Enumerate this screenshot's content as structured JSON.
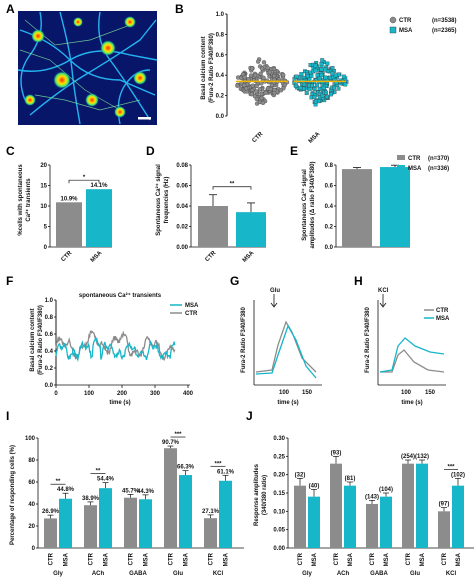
{
  "panels": {
    "A": {
      "letter": "A"
    },
    "B": {
      "letter": "B",
      "ylabel1": "Basal calcium content",
      "ylabel2": "(Fura-2 Ratio F340/F380)",
      "yticks": [
        "0.0",
        "0.2",
        "0.4",
        "0.6",
        "0.8",
        "1.0"
      ],
      "categories": [
        "CTR",
        "MSA"
      ],
      "legend": [
        {
          "name": "CTR",
          "n": "(n=3538)"
        },
        {
          "name": "MSA",
          "n": "(n=2365)"
        }
      ]
    },
    "C": {
      "letter": "C",
      "ylabel1": "%cells with spontaneous",
      "ylabel2": "Ca²⁺ transients",
      "yticks": [
        "0",
        "5",
        "10",
        "15",
        "20"
      ],
      "categories": [
        "CTR",
        "MSA"
      ],
      "bar_labels": [
        "10.9%",
        "14.1%"
      ],
      "sig": "*"
    },
    "D": {
      "letter": "D",
      "ylabel1": "Spontaneous Ca²⁺ signal",
      "ylabel2": "frequencies (Hz)",
      "yticks": [
        "0.00",
        "0.02",
        "0.04",
        "0.06",
        "0.08"
      ],
      "categories": [
        "CTR",
        "MSA"
      ],
      "sig": "**"
    },
    "E": {
      "letter": "E",
      "ylabel1": "Spontaneous Ca²⁺ signal",
      "ylabel2": "amplitudes (Δ ratio F340/F380)",
      "yticks": [
        "0.0",
        "0.2",
        "0.4",
        "0.6",
        "0.8"
      ],
      "legend": [
        {
          "name": "CTR",
          "n": "(n=370)"
        },
        {
          "name": "MSA",
          "n": "(n=336)"
        }
      ]
    },
    "F": {
      "letter": "F",
      "title": "spontaneous Ca²⁺ transients",
      "ylabel1": "Basal calcium content",
      "ylabel2": "(Fura-2 Ratio F340/F380)",
      "xlabel": "time (s)",
      "yticks": [
        "0.0",
        "0.2",
        "0.4",
        "0.6",
        "0.8",
        "1.0"
      ],
      "xticks": [
        "0",
        "100",
        "200",
        "300",
        "400"
      ],
      "legend": [
        "MSA",
        "CTR"
      ]
    },
    "G": {
      "letter": "G",
      "ylabel": "Fura-2 Ratio F340/F380",
      "xlabel": "time (s)",
      "xticks": [
        "100",
        "150"
      ],
      "stim": "Glu"
    },
    "H": {
      "letter": "H",
      "ylabel": "Fura-2 Ratio F340/F380",
      "xlabel": "time (s)",
      "xticks": [
        "100",
        "150"
      ],
      "stim": "KCl",
      "legend": [
        "CTR",
        "MSA"
      ]
    },
    "I": {
      "letter": "I",
      "ylabel": "Percentage of responding cells (%)",
      "yticks": [
        "0",
        "20",
        "40",
        "60",
        "80",
        "100"
      ],
      "groups": [
        "Gly",
        "ACh",
        "GABA",
        "Glu",
        "KCl"
      ],
      "sub": [
        "CTR",
        "MSA"
      ],
      "bar_labels": [
        [
          "26.9%",
          "44.8%"
        ],
        [
          "38.9%",
          "54.4%"
        ],
        [
          "45.7%",
          "44.3%"
        ],
        [
          "90.7%",
          "66.3%"
        ],
        [
          "27.1%",
          "61.1%"
        ]
      ],
      "sigs": [
        "**",
        "**",
        "",
        "***",
        "***"
      ]
    },
    "J": {
      "letter": "J",
      "ylabel": "Response amplitudes",
      "ylabel2": "(340/380 ratio)",
      "yticks": [
        "0.00",
        "0.05",
        "0.10",
        "0.15",
        "0.20",
        "0.25",
        "0.30"
      ],
      "groups": [
        "Gly",
        "ACh",
        "GABA",
        "Glu",
        "KCl"
      ],
      "sub": [
        "CTR",
        "MSA"
      ],
      "n_labels": [
        [
          "(32)",
          "(40)"
        ],
        [
          "(93)",
          "(81)"
        ],
        [
          "(143)",
          "(104)"
        ],
        [
          "(254)",
          "(132)"
        ],
        [
          "(97)",
          "(102)"
        ]
      ],
      "sigs": [
        "",
        "",
        "",
        "",
        "***"
      ]
    }
  },
  "chart_data": [
    {
      "panel": "C",
      "type": "bar",
      "categories": [
        "CTR",
        "MSA"
      ],
      "values": [
        10.9,
        14.1
      ],
      "ylim": [
        0,
        20
      ]
    },
    {
      "panel": "D",
      "type": "bar",
      "categories": [
        "CTR",
        "MSA"
      ],
      "values": [
        0.04,
        0.034
      ],
      "errors": [
        0.011,
        0.009
      ],
      "ylim": [
        0,
        0.08
      ]
    },
    {
      "panel": "E",
      "type": "bar",
      "categories": [
        "CTR",
        "MSA"
      ],
      "values": [
        0.76,
        0.78
      ],
      "errors": [
        0.015,
        0.018
      ],
      "ylim": [
        0,
        0.8
      ]
    },
    {
      "panel": "I",
      "type": "bar",
      "categories": [
        "Gly",
        "ACh",
        "GABA",
        "Glu",
        "KCl"
      ],
      "series": [
        {
          "name": "CTR",
          "values": [
            26.9,
            38.9,
            45.7,
            90.7,
            27.1
          ],
          "errors": [
            3,
            3,
            3,
            2,
            3
          ]
        },
        {
          "name": "MSA",
          "values": [
            44.8,
            54.4,
            44.3,
            66.3,
            61.1
          ],
          "errors": [
            5,
            5,
            4,
            4,
            5
          ]
        }
      ],
      "ylim": [
        0,
        100
      ]
    },
    {
      "panel": "J",
      "type": "bar",
      "categories": [
        "Gly",
        "ACh",
        "GABA",
        "Glu",
        "KCl"
      ],
      "series": [
        {
          "name": "CTR",
          "values": [
            0.17,
            0.23,
            0.12,
            0.23,
            0.1
          ],
          "errors": [
            0.02,
            0.02,
            0.01,
            0.01,
            0.01
          ]
        },
        {
          "name": "MSA",
          "values": [
            0.14,
            0.17,
            0.14,
            0.23,
            0.17
          ],
          "errors": [
            0.02,
            0.01,
            0.01,
            0.01,
            0.02
          ]
        }
      ],
      "ylim": [
        0,
        0.3
      ]
    }
  ],
  "colors": {
    "ctr": "#8c8c8c",
    "msa": "#17b6c9",
    "mean": "#f0b400"
  }
}
